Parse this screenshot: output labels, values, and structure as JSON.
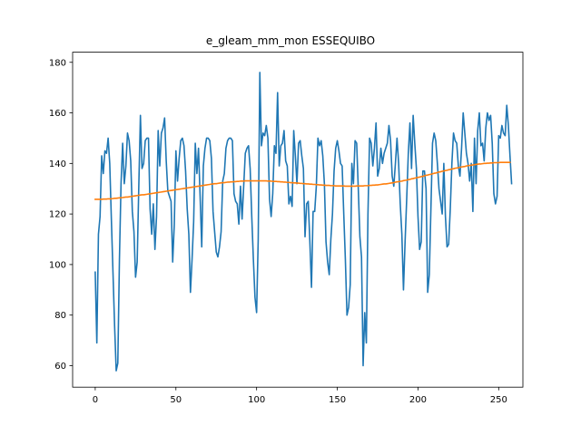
{
  "chart_data": {
    "type": "line",
    "title": "e_gleam_mm_mon ESSEQUIBO",
    "xlabel": "",
    "ylabel": "",
    "xlim": [
      -14,
      265
    ],
    "ylim": [
      51.5,
      184
    ],
    "x_ticks": [
      0,
      50,
      100,
      150,
      200,
      250
    ],
    "y_ticks": [
      60,
      80,
      100,
      120,
      140,
      160,
      180
    ],
    "grid": false,
    "legend": "none",
    "series": [
      {
        "color": "#1f77b4",
        "x_start": 0,
        "values": [
          97,
          69,
          112,
          119,
          143,
          136,
          145,
          144,
          150,
          140,
          118,
          97,
          76,
          58,
          61,
          102,
          132,
          148,
          132,
          139,
          152,
          149,
          141,
          121,
          113,
          95,
          101,
          131,
          159,
          138,
          140,
          149,
          150,
          150,
          122,
          112,
          124,
          106,
          119,
          153,
          139,
          152,
          154,
          158,
          141,
          129,
          127,
          125,
          101,
          116,
          145,
          133,
          142,
          149,
          150,
          147,
          137,
          122,
          112,
          89,
          102,
          117,
          148,
          136,
          146,
          127,
          107,
          139,
          146,
          150,
          150,
          149,
          142,
          121,
          113,
          105,
          103,
          107,
          113,
          133,
          136,
          146,
          149,
          150,
          150,
          149,
          128,
          125,
          124,
          116,
          131,
          118,
          131,
          144,
          146,
          147,
          138,
          119,
          102,
          87,
          81,
          110,
          176,
          147,
          152,
          151,
          155,
          150,
          126,
          119,
          128,
          147,
          144,
          168,
          139,
          147,
          148,
          153,
          141,
          139,
          124,
          127,
          123,
          153,
          143,
          132,
          148,
          149,
          143,
          138,
          111,
          124,
          125,
          109,
          91,
          121,
          121,
          131,
          150,
          147,
          149,
          143,
          132,
          109,
          101,
          96,
          110,
          120,
          137,
          146,
          149,
          145,
          140,
          139,
          120,
          102,
          80,
          83,
          92,
          140,
          132,
          149,
          148,
          130,
          111,
          103,
          60,
          81,
          69,
          120,
          150,
          148,
          139,
          146,
          156,
          135,
          138,
          146,
          140,
          144,
          146,
          148,
          155,
          149,
          135,
          131,
          140,
          150,
          140,
          124,
          112,
          90,
          109,
          126,
          144,
          156,
          138,
          159,
          148,
          138,
          119,
          106,
          109,
          137,
          137,
          130,
          89,
          96,
          122,
          148,
          152,
          149,
          140,
          130,
          125,
          120,
          140,
          119,
          107,
          108,
          122,
          140,
          152,
          149,
          148,
          139,
          135,
          146,
          160,
          152,
          144,
          140,
          133,
          140,
          121,
          150,
          132,
          153,
          160,
          147,
          148,
          141,
          154,
          160,
          157,
          159,
          148,
          128,
          124,
          127,
          151,
          150,
          155,
          152,
          151,
          163,
          155,
          143,
          132
        ]
      },
      {
        "color": "#ff7f0e",
        "x_start": 0,
        "values": [
          125.8,
          125.8,
          125.8,
          125.8,
          125.8,
          125.9,
          125.9,
          125.9,
          126.0,
          126.0,
          126.0,
          126.1,
          126.2,
          126.2,
          126.3,
          126.4,
          126.4,
          126.5,
          126.6,
          126.7,
          126.7,
          126.8,
          126.9,
          127.0,
          127.1,
          127.2,
          127.3,
          127.4,
          127.5,
          127.6,
          127.6,
          127.7,
          127.8,
          127.9,
          128.0,
          128.1,
          128.2,
          128.3,
          128.4,
          128.5,
          128.6,
          128.7,
          128.8,
          128.9,
          129.0,
          129.1,
          129.2,
          129.3,
          129.4,
          129.5,
          129.6,
          129.7,
          129.8,
          129.9,
          130.0,
          130.1,
          130.2,
          130.3,
          130.4,
          130.5,
          130.6,
          130.7,
          130.8,
          130.9,
          131.0,
          131.1,
          131.2,
          131.3,
          131.4,
          131.5,
          131.6,
          131.7,
          131.8,
          131.9,
          132.0,
          132.0,
          132.1,
          132.2,
          132.3,
          132.4,
          132.4,
          132.5,
          132.6,
          132.6,
          132.7,
          132.7,
          132.8,
          132.8,
          132.9,
          132.9,
          133.0,
          133.0,
          133.0,
          133.1,
          133.1,
          133.1,
          133.1,
          133.1,
          133.1,
          133.1,
          133.1,
          133.1,
          133.1,
          133.1,
          133.1,
          133.1,
          133.1,
          133.0,
          133.0,
          133.0,
          132.9,
          132.9,
          132.9,
          132.8,
          132.8,
          132.7,
          132.7,
          132.6,
          132.6,
          132.5,
          132.5,
          132.4,
          132.4,
          132.3,
          132.3,
          132.2,
          132.2,
          132.1,
          132.1,
          132.0,
          132.0,
          131.9,
          131.9,
          131.8,
          131.8,
          131.7,
          131.7,
          131.6,
          131.6,
          131.5,
          131.5,
          131.4,
          131.4,
          131.3,
          131.3,
          131.3,
          131.2,
          131.2,
          131.2,
          131.1,
          131.1,
          131.1,
          131.1,
          131.1,
          131.1,
          131.0,
          131.0,
          131.0,
          131.0,
          131.0,
          131.0,
          131.0,
          131.1,
          131.1,
          131.1,
          131.1,
          131.1,
          131.2,
          131.2,
          131.2,
          131.3,
          131.3,
          131.4,
          131.4,
          131.5,
          131.5,
          131.6,
          131.7,
          131.8,
          131.9,
          131.9,
          132.0,
          132.1,
          132.2,
          132.3,
          132.4,
          132.6,
          132.7,
          132.8,
          132.9,
          133.0,
          133.2,
          133.3,
          133.4,
          133.6,
          133.7,
          133.9,
          134.0,
          134.2,
          134.3,
          134.5,
          134.6,
          134.8,
          134.9,
          135.1,
          135.3,
          135.4,
          135.6,
          135.7,
          135.9,
          136.1,
          136.2,
          136.4,
          136.6,
          136.7,
          136.9,
          137.0,
          137.2,
          137.3,
          137.5,
          137.6,
          137.8,
          137.9,
          138.1,
          138.2,
          138.3,
          138.5,
          138.6,
          138.7,
          138.8,
          139.0,
          139.1,
          139.2,
          139.3,
          139.4,
          139.5,
          139.6,
          139.7,
          139.8,
          139.8,
          139.9,
          140.0,
          140.0,
          140.1,
          140.1,
          140.2,
          140.2,
          140.3,
          140.3,
          140.3,
          140.3,
          140.4,
          140.4,
          140.4,
          140.4,
          140.4,
          140.4,
          140.4
        ]
      }
    ]
  }
}
